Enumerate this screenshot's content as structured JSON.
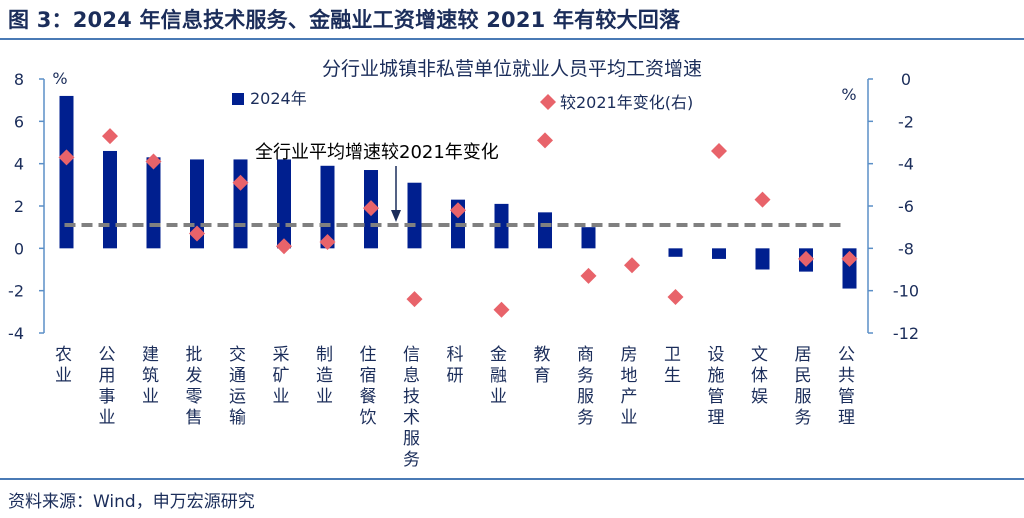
{
  "figure_title": "图 3：2024 年信息技术服务、金融业工资增速较 2021 年有较大回落",
  "source_note": "资料来源：Wind，申万宏源研究",
  "colors": {
    "bar": "#001f8f",
    "diamond": "#e8636a",
    "avg_line": "#808080",
    "axis": "#5b8fc7",
    "title_text": "#1b2d5a"
  },
  "chart_data": {
    "type": "bar",
    "title": "分行业城镇非私营单位就业人员平均工资增速",
    "left_unit": "%",
    "right_unit": "%",
    "annotation": "全行业平均增速较2021年变化",
    "categories": [
      "农业",
      "公用事业",
      "建筑业",
      "批发零售",
      "交通运输",
      "采矿业",
      "制造业",
      "住宿餐饮",
      "信息技术服务",
      "科研",
      "金融业",
      "教育",
      "商务服务",
      "房地产业",
      "卫生",
      "设施管理",
      "文体娱",
      "居民服务",
      "公共管理"
    ],
    "series": [
      {
        "name": "2024年",
        "type": "bar",
        "axis": "left",
        "values": [
          7.2,
          4.6,
          4.3,
          4.2,
          4.2,
          4.2,
          3.9,
          3.7,
          3.1,
          2.3,
          2.1,
          1.7,
          1.0,
          0.0,
          -0.4,
          -0.5,
          -1.0,
          -1.1,
          -1.9
        ]
      },
      {
        "name": "较2021年变化(右)",
        "type": "scatter",
        "marker": "diamond",
        "axis": "right",
        "values": [
          -3.7,
          -2.7,
          -3.9,
          -7.3,
          -4.9,
          -7.9,
          -7.7,
          -6.1,
          -10.4,
          -6.2,
          -10.9,
          -2.9,
          -9.3,
          -8.8,
          -10.3,
          -3.4,
          -5.7,
          -8.5,
          -8.5
        ]
      }
    ],
    "reference_line": {
      "value_left_axis": 1.1,
      "style": "dashed",
      "label": "全行业平均增速较2021年变化"
    },
    "y_left": {
      "ylim": [
        -4,
        8
      ],
      "ticks": [
        -4,
        -2,
        0,
        2,
        4,
        6,
        8
      ]
    },
    "y_right": {
      "ylim": [
        -12,
        0
      ],
      "ticks": [
        -12,
        -10,
        -8,
        -6,
        -4,
        -2,
        0
      ]
    },
    "grid": false,
    "legend_position": "top"
  }
}
